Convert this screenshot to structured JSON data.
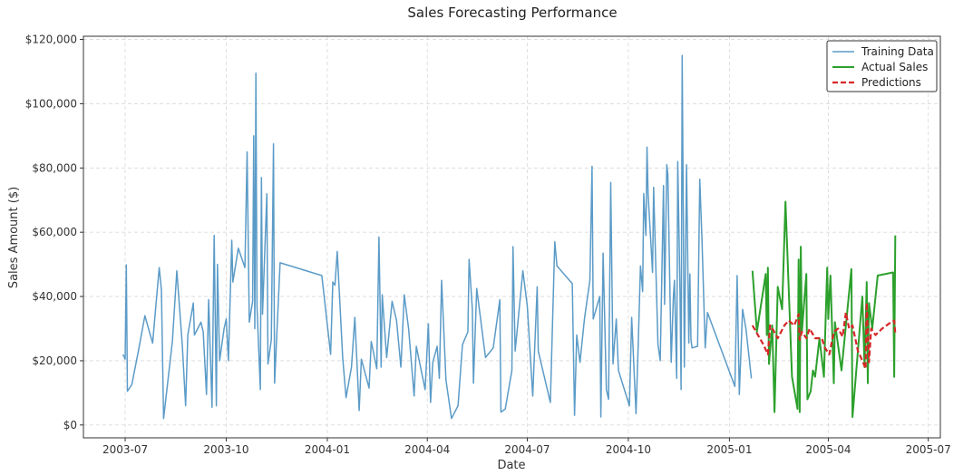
{
  "chart_data": {
    "type": "line",
    "title": "Sales Forecasting Performance",
    "xlabel": "Date",
    "ylabel": "Sales Amount ($)",
    "xlim": [
      "2003-05-24",
      "2005-07-12"
    ],
    "ylim": [
      -4000,
      121000
    ],
    "grid": true,
    "legend_position": "top-right",
    "x_ticks": [
      "2003-07",
      "2003-10",
      "2004-01",
      "2004-04",
      "2004-07",
      "2004-10",
      "2005-01",
      "2005-04",
      "2005-07"
    ],
    "y_ticks": [
      {
        "value": 0,
        "label": "$0"
      },
      {
        "value": 20000,
        "label": "$20,000"
      },
      {
        "value": 40000,
        "label": "$40,000"
      },
      {
        "value": 60000,
        "label": "$60,000"
      },
      {
        "value": 80000,
        "label": "$80,000"
      },
      {
        "value": 100000,
        "label": "$100,000"
      },
      {
        "value": 120000,
        "label": "$120,000"
      }
    ],
    "series": [
      {
        "name": "Training Data",
        "color": "#5b9bc7",
        "style": "solid",
        "points": [
          [
            "2003-06-29",
            22000
          ],
          [
            "2003-07-01",
            20500
          ],
          [
            "2003-07-02",
            49800
          ],
          [
            "2003-07-03",
            10500
          ],
          [
            "2003-07-07",
            12500
          ],
          [
            "2003-07-13",
            23000
          ],
          [
            "2003-07-19",
            34000
          ],
          [
            "2003-07-26",
            25500
          ],
          [
            "2003-08-01",
            49000
          ],
          [
            "2003-08-03",
            42000
          ],
          [
            "2003-08-05",
            2000
          ],
          [
            "2003-08-13",
            26000
          ],
          [
            "2003-08-17",
            48000
          ],
          [
            "2003-08-22",
            25000
          ],
          [
            "2003-08-25",
            6000
          ],
          [
            "2003-08-27",
            28000
          ],
          [
            "2003-09-01",
            38000
          ],
          [
            "2003-09-02",
            28000
          ],
          [
            "2003-09-08",
            32000
          ],
          [
            "2003-09-10",
            29000
          ],
          [
            "2003-09-13",
            9500
          ],
          [
            "2003-09-15",
            39000
          ],
          [
            "2003-09-18",
            5500
          ],
          [
            "2003-09-20",
            59000
          ],
          [
            "2003-09-22",
            6000
          ],
          [
            "2003-09-23",
            50000
          ],
          [
            "2003-09-25",
            20000
          ],
          [
            "2003-09-29",
            30000
          ],
          [
            "2003-10-01",
            33000
          ],
          [
            "2003-10-03",
            20000
          ],
          [
            "2003-10-06",
            57500
          ],
          [
            "2003-10-07",
            44500
          ],
          [
            "2003-10-12",
            55000
          ],
          [
            "2003-10-18",
            49000
          ],
          [
            "2003-10-20",
            85000
          ],
          [
            "2003-10-22",
            32000
          ],
          [
            "2003-10-25",
            38500
          ],
          [
            "2003-10-26",
            90000
          ],
          [
            "2003-10-27",
            30000
          ],
          [
            "2003-10-28",
            109500
          ],
          [
            "2003-10-29",
            37000
          ],
          [
            "2003-11-01",
            11000
          ],
          [
            "2003-11-02",
            77000
          ],
          [
            "2003-11-03",
            34500
          ],
          [
            "2003-11-07",
            72000
          ],
          [
            "2003-11-08",
            19000
          ],
          [
            "2003-11-11",
            26500
          ],
          [
            "2003-11-13",
            87500
          ],
          [
            "2003-11-14",
            13000
          ],
          [
            "2003-11-19",
            50500
          ],
          [
            "2003-12-27",
            46500
          ],
          [
            "2004-01-04",
            22000
          ],
          [
            "2004-01-06",
            44500
          ],
          [
            "2004-01-08",
            43500
          ],
          [
            "2004-01-10",
            54000
          ],
          [
            "2004-01-15",
            21000
          ],
          [
            "2004-01-18",
            8500
          ],
          [
            "2004-01-23",
            18000
          ],
          [
            "2004-01-26",
            33500
          ],
          [
            "2004-01-30",
            4500
          ],
          [
            "2004-02-01",
            20500
          ],
          [
            "2004-02-08",
            11500
          ],
          [
            "2004-02-10",
            26000
          ],
          [
            "2004-02-15",
            17500
          ],
          [
            "2004-02-17",
            58500
          ],
          [
            "2004-02-19",
            18000
          ],
          [
            "2004-02-20",
            40500
          ],
          [
            "2004-02-24",
            21000
          ],
          [
            "2004-02-29",
            38500
          ],
          [
            "2004-03-04",
            32500
          ],
          [
            "2004-03-08",
            18000
          ],
          [
            "2004-03-11",
            40500
          ],
          [
            "2004-03-15",
            30000
          ],
          [
            "2004-03-20",
            9000
          ],
          [
            "2004-03-22",
            24500
          ],
          [
            "2004-03-30",
            11000
          ],
          [
            "2004-04-02",
            31500
          ],
          [
            "2004-04-04",
            7000
          ],
          [
            "2004-04-06",
            19500
          ],
          [
            "2004-04-10",
            24500
          ],
          [
            "2004-04-12",
            14500
          ],
          [
            "2004-04-14",
            45000
          ],
          [
            "2004-04-18",
            14000
          ],
          [
            "2004-04-23",
            2000
          ],
          [
            "2004-04-29",
            6000
          ],
          [
            "2004-05-03",
            25000
          ],
          [
            "2004-05-08",
            29000
          ],
          [
            "2004-05-09",
            51500
          ],
          [
            "2004-05-12",
            36000
          ],
          [
            "2004-05-13",
            13000
          ],
          [
            "2004-05-16",
            42500
          ],
          [
            "2004-05-24",
            21000
          ],
          [
            "2004-05-31",
            24000
          ],
          [
            "2004-06-06",
            39000
          ],
          [
            "2004-06-07",
            4000
          ],
          [
            "2004-06-11",
            5000
          ],
          [
            "2004-06-17",
            17000
          ],
          [
            "2004-06-18",
            55500
          ],
          [
            "2004-06-20",
            23000
          ],
          [
            "2004-06-27",
            48000
          ],
          [
            "2004-07-01",
            37000
          ],
          [
            "2004-07-06",
            9000
          ],
          [
            "2004-07-10",
            43000
          ],
          [
            "2004-07-11",
            23000
          ],
          [
            "2004-07-22",
            7000
          ],
          [
            "2004-07-26",
            57000
          ],
          [
            "2004-07-28",
            49500
          ],
          [
            "2004-08-11",
            44000
          ],
          [
            "2004-08-13",
            3000
          ],
          [
            "2004-08-15",
            28000
          ],
          [
            "2004-08-18",
            19500
          ],
          [
            "2004-08-22",
            33000
          ],
          [
            "2004-08-27",
            45000
          ],
          [
            "2004-08-29",
            80500
          ],
          [
            "2004-08-30",
            33000
          ],
          [
            "2004-09-05",
            40000
          ],
          [
            "2004-09-06",
            2500
          ],
          [
            "2004-09-08",
            53500
          ],
          [
            "2004-09-11",
            11000
          ],
          [
            "2004-09-13",
            8000
          ],
          [
            "2004-09-15",
            75500
          ],
          [
            "2004-09-17",
            19000
          ],
          [
            "2004-09-20",
            33000
          ],
          [
            "2004-09-22",
            17000
          ],
          [
            "2004-10-02",
            6000
          ],
          [
            "2004-10-04",
            33500
          ],
          [
            "2004-10-08",
            3500
          ],
          [
            "2004-10-10",
            25000
          ],
          [
            "2004-10-12",
            49500
          ],
          [
            "2004-10-14",
            41500
          ],
          [
            "2004-10-15",
            72000
          ],
          [
            "2004-10-17",
            59000
          ],
          [
            "2004-10-18",
            86500
          ],
          [
            "2004-10-19",
            72000
          ],
          [
            "2004-10-23",
            47500
          ],
          [
            "2004-10-24",
            74000
          ],
          [
            "2004-10-28",
            25000
          ],
          [
            "2004-10-30",
            20000
          ],
          [
            "2004-11-02",
            74500
          ],
          [
            "2004-11-03",
            37500
          ],
          [
            "2004-11-05",
            81000
          ],
          [
            "2004-11-06",
            78000
          ],
          [
            "2004-11-09",
            19500
          ],
          [
            "2004-11-11",
            40000
          ],
          [
            "2004-11-12",
            45000
          ],
          [
            "2004-11-14",
            14500
          ],
          [
            "2004-11-15",
            82000
          ],
          [
            "2004-11-17",
            41500
          ],
          [
            "2004-11-18",
            11000
          ],
          [
            "2004-11-19",
            115000
          ],
          [
            "2004-11-21",
            18000
          ],
          [
            "2004-11-23",
            81000
          ],
          [
            "2004-11-25",
            25500
          ],
          [
            "2004-11-26",
            47000
          ],
          [
            "2004-11-27",
            26500
          ],
          [
            "2004-11-28",
            24000
          ],
          [
            "2004-12-03",
            24500
          ],
          [
            "2004-12-05",
            76500
          ],
          [
            "2004-12-07",
            58000
          ],
          [
            "2004-12-10",
            24000
          ],
          [
            "2004-12-12",
            35000
          ],
          [
            "2005-01-06",
            12000
          ],
          [
            "2005-01-08",
            46500
          ],
          [
            "2005-01-10",
            9500
          ],
          [
            "2005-01-13",
            36000
          ],
          [
            "2005-01-16",
            30000
          ],
          [
            "2005-01-21",
            14500
          ]
        ]
      },
      {
        "name": "Actual Sales",
        "color": "#2ca02c",
        "style": "solid",
        "points": [
          [
            "2005-01-22",
            48000
          ],
          [
            "2005-01-26",
            29000
          ],
          [
            "2005-02-03",
            47000
          ],
          [
            "2005-02-04",
            28000
          ],
          [
            "2005-02-05",
            49000
          ],
          [
            "2005-02-06",
            19000
          ],
          [
            "2005-02-09",
            31000
          ],
          [
            "2005-02-11",
            4000
          ],
          [
            "2005-02-14",
            43000
          ],
          [
            "2005-02-18",
            36000
          ],
          [
            "2005-02-21",
            69500
          ],
          [
            "2005-02-27",
            15000
          ],
          [
            "2005-03-04",
            5000
          ],
          [
            "2005-03-05",
            51500
          ],
          [
            "2005-03-06",
            4000
          ],
          [
            "2005-03-07",
            55500
          ],
          [
            "2005-03-08",
            29000
          ],
          [
            "2005-03-12",
            47000
          ],
          [
            "2005-03-13",
            8000
          ],
          [
            "2005-03-16",
            10500
          ],
          [
            "2005-03-18",
            17000
          ],
          [
            "2005-03-20",
            15000
          ],
          [
            "2005-03-24",
            27000
          ],
          [
            "2005-03-28",
            15000
          ],
          [
            "2005-03-31",
            49000
          ],
          [
            "2005-04-01",
            33000
          ],
          [
            "2005-04-03",
            46500
          ],
          [
            "2005-04-06",
            13000
          ],
          [
            "2005-04-07",
            32000
          ],
          [
            "2005-04-13",
            17000
          ],
          [
            "2005-04-22",
            48500
          ],
          [
            "2005-04-23",
            2500
          ],
          [
            "2005-05-02",
            40000
          ],
          [
            "2005-05-04",
            18000
          ],
          [
            "2005-05-06",
            44500
          ],
          [
            "2005-05-07",
            13000
          ],
          [
            "2005-05-08",
            38000
          ],
          [
            "2005-05-11",
            30000
          ],
          [
            "2005-05-16",
            46500
          ],
          [
            "2005-05-30",
            47500
          ],
          [
            "2005-05-31",
            15000
          ],
          [
            "2005-06-01",
            59000
          ]
        ]
      },
      {
        "name": "Predictions",
        "color": "#d62728",
        "style": "dashed",
        "points": [
          [
            "2005-01-22",
            31000
          ],
          [
            "2005-02-01",
            25000
          ],
          [
            "2005-02-05",
            22000
          ],
          [
            "2005-02-07",
            31000
          ],
          [
            "2005-02-10",
            29500
          ],
          [
            "2005-02-14",
            27000
          ],
          [
            "2005-02-20",
            31000
          ],
          [
            "2005-02-24",
            32500
          ],
          [
            "2005-03-01",
            31000
          ],
          [
            "2005-03-05",
            34500
          ],
          [
            "2005-03-06",
            26500
          ],
          [
            "2005-03-08",
            29000
          ],
          [
            "2005-03-12",
            27000
          ],
          [
            "2005-03-15",
            30000
          ],
          [
            "2005-03-20",
            27000
          ],
          [
            "2005-03-26",
            27000
          ],
          [
            "2005-03-29",
            24000
          ],
          [
            "2005-04-02",
            22000
          ],
          [
            "2005-04-06",
            29000
          ],
          [
            "2005-04-10",
            30000
          ],
          [
            "2005-04-14",
            27500
          ],
          [
            "2005-04-17",
            35000
          ],
          [
            "2005-04-20",
            30000
          ],
          [
            "2005-04-23",
            31000
          ],
          [
            "2005-04-28",
            23000
          ],
          [
            "2005-05-02",
            20000
          ],
          [
            "2005-05-05",
            17500
          ],
          [
            "2005-05-06",
            38000
          ],
          [
            "2005-05-08",
            19500
          ],
          [
            "2005-05-10",
            30000
          ],
          [
            "2005-05-14",
            28000
          ],
          [
            "2005-05-20",
            30000
          ],
          [
            "2005-05-26",
            31500
          ],
          [
            "2005-05-31",
            32500
          ],
          [
            "2005-06-01",
            28500
          ]
        ]
      }
    ]
  }
}
